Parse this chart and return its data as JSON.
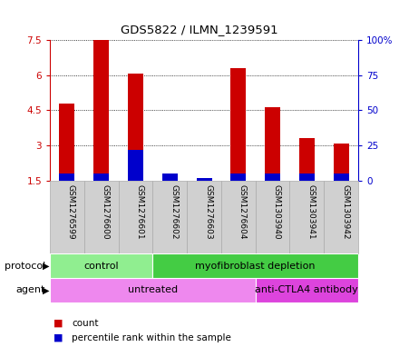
{
  "title": "GDS5822 / ILMN_1239591",
  "samples": [
    "GSM1276599",
    "GSM1276600",
    "GSM1276601",
    "GSM1276602",
    "GSM1276603",
    "GSM1276604",
    "GSM1303940",
    "GSM1303941",
    "GSM1303942"
  ],
  "count_values": [
    4.8,
    7.5,
    6.05,
    1.65,
    1.5,
    6.3,
    4.65,
    3.3,
    3.1
  ],
  "percentile_values": [
    5,
    5,
    22,
    5,
    2,
    5,
    5,
    5,
    5
  ],
  "ylim_left": [
    1.5,
    7.5
  ],
  "ylim_right": [
    0,
    100
  ],
  "yticks_left": [
    1.5,
    3.0,
    4.5,
    6.0,
    7.5
  ],
  "yticks_right": [
    0,
    25,
    50,
    75,
    100
  ],
  "ytick_labels_left": [
    "1.5",
    "3",
    "4.5",
    "6",
    "7.5"
  ],
  "ytick_labels_right": [
    "0",
    "25",
    "50",
    "75",
    "100%"
  ],
  "bar_color": "#cc0000",
  "percentile_color": "#0000cc",
  "protocol_groups": [
    {
      "label": "control",
      "start": 0,
      "end": 3,
      "color": "#90ee90"
    },
    {
      "label": "myofibroblast depletion",
      "start": 3,
      "end": 9,
      "color": "#44cc44"
    }
  ],
  "agent_groups": [
    {
      "label": "untreated",
      "start": 0,
      "end": 6,
      "color": "#ee88ee"
    },
    {
      "label": "anti-CTLA4 antibody",
      "start": 6,
      "end": 9,
      "color": "#dd44dd"
    }
  ],
  "protocol_label": "protocol",
  "agent_label": "agent",
  "left_axis_color": "#cc0000",
  "right_axis_color": "#0000cc",
  "sample_bg_color": "#d0d0d0",
  "sample_edge_color": "#aaaaaa"
}
